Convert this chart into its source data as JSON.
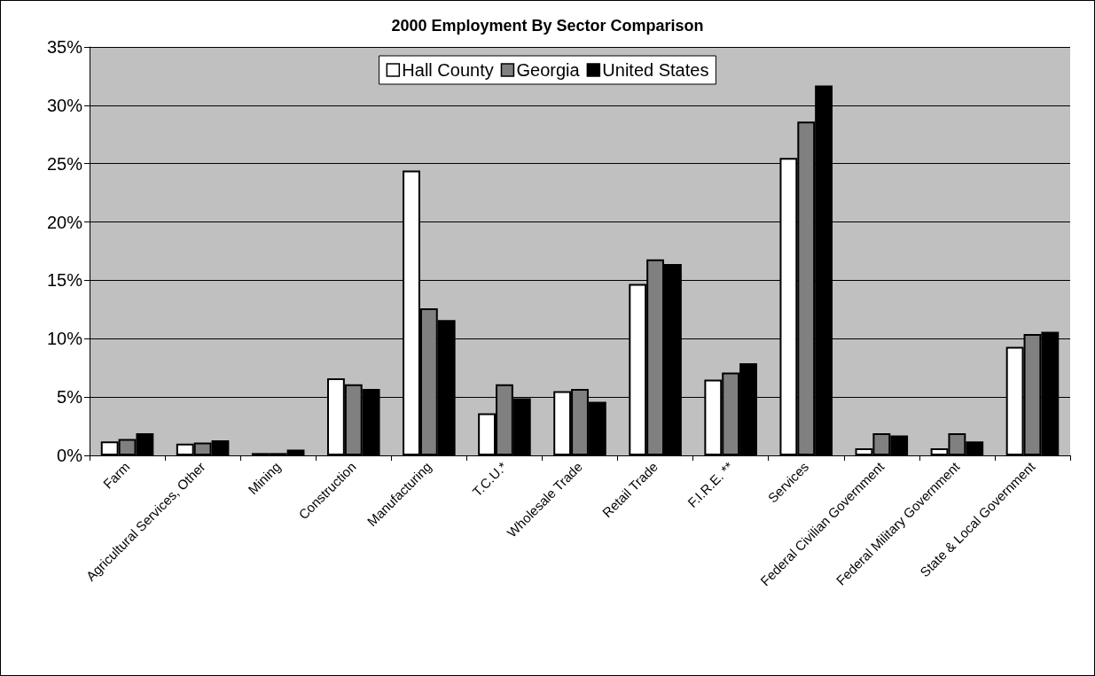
{
  "chart_data": {
    "type": "bar",
    "title": "2000 Employment By Sector Comparison",
    "categories": [
      "Farm",
      "Agricultural Services, Other",
      "Mining",
      "Construction",
      "Manufacturing",
      "T.C.U.*",
      "Wholesale Trade",
      "Retail Trade",
      "F.I.R.E. **",
      "Services",
      "Federal Civilian Government",
      "Federal Military Government",
      "State & Local Government"
    ],
    "series": [
      {
        "name": "Hall County",
        "color": "#ffffff",
        "values": [
          1.2,
          1.0,
          0.2,
          6.6,
          24.4,
          3.6,
          5.5,
          14.7,
          6.5,
          25.5,
          0.6,
          0.6,
          9.3
        ]
      },
      {
        "name": "Georgia",
        "color": "#808080",
        "values": [
          1.4,
          1.1,
          0.2,
          6.1,
          12.6,
          6.1,
          5.7,
          16.8,
          7.1,
          28.6,
          1.9,
          1.9,
          10.4
        ]
      },
      {
        "name": "United States",
        "color": "#000000",
        "values": [
          1.9,
          1.3,
          0.5,
          5.7,
          11.6,
          4.9,
          4.6,
          16.4,
          7.9,
          31.7,
          1.7,
          1.2,
          10.6
        ]
      }
    ],
    "ylim": [
      0,
      35
    ],
    "yticks": [
      {
        "value": 0,
        "label": "0%"
      },
      {
        "value": 5,
        "label": "5%"
      },
      {
        "value": 10,
        "label": "10%"
      },
      {
        "value": 15,
        "label": "15%"
      },
      {
        "value": 20,
        "label": "20%"
      },
      {
        "value": 25,
        "label": "25%"
      },
      {
        "value": 30,
        "label": "30%"
      },
      {
        "value": 35,
        "label": "35%"
      }
    ],
    "grid": "y",
    "legend": "top"
  }
}
